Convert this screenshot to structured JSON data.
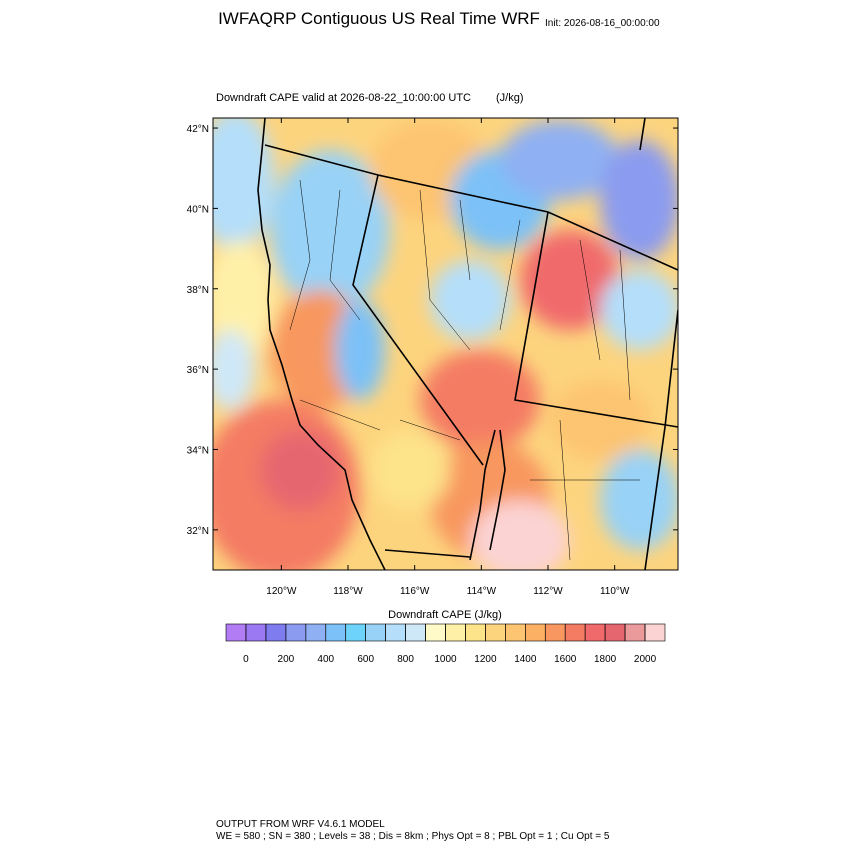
{
  "header": {
    "title": "IWFAQRP Contiguous US Real Time WRF",
    "init": "Init: 2026-08-16_00:00:00"
  },
  "map": {
    "subtitle": "Downdraft CAPE valid at 2026-08-22_10:00:00 UTC",
    "units": "(J/kg)",
    "lon_range": [
      -122.05,
      -108.1
    ],
    "lat_range": [
      31,
      42.25
    ],
    "lat_ticks": [
      {
        "value": 42,
        "label": "42°N"
      },
      {
        "value": 40,
        "label": "40°N"
      },
      {
        "value": 38,
        "label": "38°N"
      },
      {
        "value": 36,
        "label": "36°N"
      },
      {
        "value": 34,
        "label": "34°N"
      },
      {
        "value": 32,
        "label": "32°N"
      }
    ],
    "lon_ticks": [
      {
        "value": -120,
        "label": "120°W"
      },
      {
        "value": -118,
        "label": "118°W"
      },
      {
        "value": -116,
        "label": "116°W"
      },
      {
        "value": -114,
        "label": "114°W"
      },
      {
        "value": -112,
        "label": "112°W"
      },
      {
        "value": -110,
        "label": "110°W"
      }
    ]
  },
  "colorbar": {
    "title": "Downdraft CAPE  (J/kg)",
    "levels": [
      0,
      100,
      200,
      300,
      400,
      500,
      600,
      700,
      800,
      900,
      1000,
      1100,
      1200,
      1300,
      1400,
      1500,
      1600,
      1700,
      1800,
      1900,
      2000
    ],
    "ticks": [
      0,
      200,
      400,
      600,
      800,
      1000,
      1200,
      1400,
      1600,
      1800,
      2000
    ],
    "colors": [
      "#b27cf4",
      "#9a79f3",
      "#7f7cf0",
      "#8b9bef",
      "#8fb0f3",
      "#7cc1f7",
      "#6dd3fb",
      "#98d2f6",
      "#b4defa",
      "#cfe8f8",
      "#fffac8",
      "#fff0a8",
      "#fde38a",
      "#fdd47e",
      "#fdc471",
      "#fcb063",
      "#f8975f",
      "#f47c63",
      "#f06a6c",
      "#e66670",
      "#ea9a9b",
      "#fbd3d3"
    ]
  },
  "footer": {
    "line1": "OUTPUT FROM WRF V4.6.1 MODEL",
    "line2": "WE = 580 ; SN = 380 ; Levels = 38 ; Dis = 8km ; Phys Opt = 8 ; PBL Opt = 1 ; Cu Opt = 5"
  }
}
